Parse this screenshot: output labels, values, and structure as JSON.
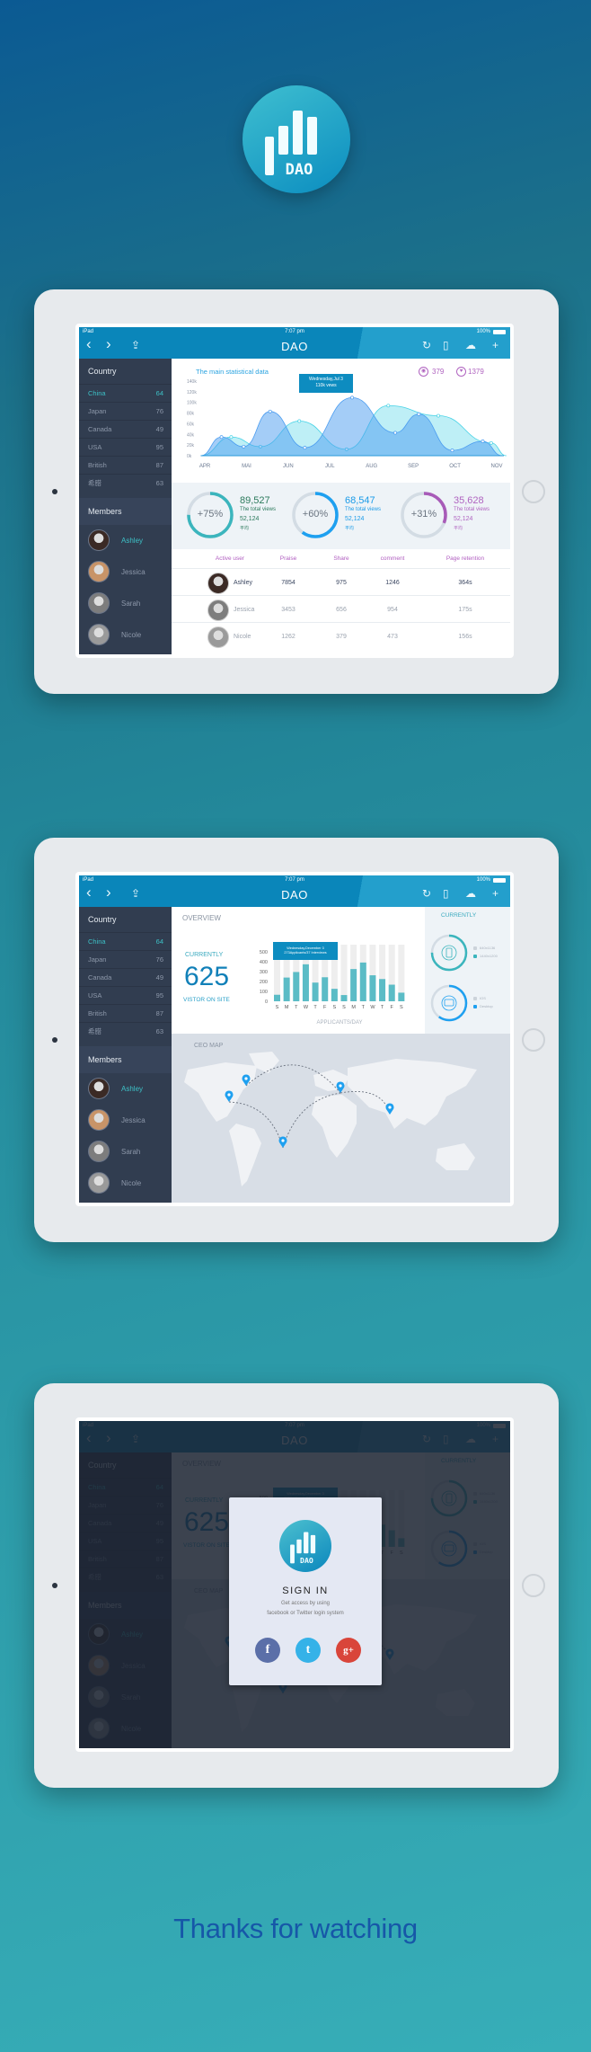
{
  "brand": {
    "logo_text": "DAO",
    "logo_color": "#1aa3c8"
  },
  "statusbar": {
    "device": "iPad",
    "time": "7:07 pm",
    "battery": "100%"
  },
  "nav": {
    "title": "DAO",
    "icons": [
      "chevron-left-icon",
      "chevron-right-icon",
      "share-icon",
      "refresh-icon",
      "book-icon",
      "cloud-icon",
      "plus-icon"
    ]
  },
  "sidebar": {
    "country_title": "Country",
    "countries": [
      {
        "name": "China",
        "count": "64",
        "active": true
      },
      {
        "name": "Japan",
        "count": "76"
      },
      {
        "name": "Canada",
        "count": "49"
      },
      {
        "name": "USA",
        "count": "95"
      },
      {
        "name": "British",
        "count": "87"
      },
      {
        "name": "希腊",
        "count": "63"
      }
    ],
    "members_title": "Members",
    "members": [
      {
        "name": "Ashley",
        "active": true
      },
      {
        "name": "Jessica"
      },
      {
        "name": "Sarah"
      },
      {
        "name": "Nicole"
      }
    ]
  },
  "screen1": {
    "chart_title": "The main statistical data",
    "views_count": "379",
    "likes_count": "1379",
    "tooltip": {
      "line1": "Wednesday,Jul 3",
      "line2": "110k vews"
    },
    "stats": [
      {
        "percent": "+75%",
        "fraction": 0.75,
        "total": "89,527",
        "label": "The total views",
        "avg": "52,124",
        "avg_label": "平均",
        "color": "#3bb5bd",
        "text_color": "#2c7a5c"
      },
      {
        "percent": "+60%",
        "fraction": 0.6,
        "total": "68,547",
        "label": "The total views",
        "avg": "52,124",
        "avg_label": "平均",
        "color": "#1ea0f0",
        "text_color": "#1a9be8"
      },
      {
        "percent": "+31%",
        "fraction": 0.31,
        "total": "35,628",
        "label": "The total views",
        "avg": "52,124",
        "avg_label": "平均",
        "color": "#a85bb8",
        "text_color": "#b064c0"
      }
    ],
    "table": {
      "headers": [
        "Active user",
        "Praise",
        "Share",
        "comment",
        "Page retention"
      ],
      "rows": [
        [
          "Ashley",
          "7854",
          "975",
          "1246",
          "364s"
        ],
        [
          "Jessica",
          "3453",
          "656",
          "954",
          "175s"
        ],
        [
          "Nicole",
          "1262",
          "379",
          "473",
          "156s"
        ]
      ]
    }
  },
  "screen2": {
    "overview_title": "OVERVIEW",
    "currently_label": "CURRENTLY",
    "visitors": "625",
    "visitors_label": "VISTOR ON SITE",
    "tooltip": {
      "line1": "Wednesday,December 3",
      "line2": "273Applicants/37 Interviews"
    },
    "right_title": "CURRENTLY",
    "donuts": [
      {
        "icon": "phone-icon",
        "fraction": 0.75,
        "color": "#3bb5bd",
        "legend": [
          "640x1136",
          "1440x1200"
        ]
      },
      {
        "icon": "monitor-icon",
        "fraction": 0.6,
        "color": "#1ea0f0",
        "legend": [
          "IOS",
          "Desktop"
        ]
      }
    ],
    "map_title": "CEO MAP"
  },
  "signin": {
    "title": "SIGN IN",
    "subtitle_line1": "Get access by using",
    "subtitle_line2": "facebook or Twitter login system",
    "social": [
      {
        "icon": "facebook-icon",
        "glyph": "f",
        "color": "#5b6fa8"
      },
      {
        "icon": "twitter-icon",
        "glyph": "t",
        "color": "#35b2e8"
      },
      {
        "icon": "google-plus-icon",
        "glyph": "g+",
        "color": "#d9453a"
      }
    ]
  },
  "footer": {
    "thanks": "Thanks for watching"
  },
  "chart_data": [
    {
      "type": "area",
      "title": "The main statistical data",
      "x_ticks": [
        "APR",
        "MAI",
        "JUN",
        "JUL",
        "AUG",
        "SEP",
        "OCT",
        "NOV"
      ],
      "y_ticks": [
        "0k",
        "20k",
        "40k",
        "60k",
        "80k",
        "100k",
        "120k",
        "140k"
      ],
      "ylim": [
        0,
        140
      ],
      "series": [
        {
          "color": "#4a9cf0",
          "points": [
            [
              "Mar 28",
              0
            ],
            [
              "Apr 13",
              35
            ],
            [
              "Apr 29",
              17
            ],
            [
              "May 18",
              83
            ],
            [
              "Jun 13",
              15
            ],
            [
              "Jul 17",
              109
            ],
            [
              "Aug 18",
              43
            ],
            [
              "Sep 5",
              78
            ],
            [
              "Sep 29",
              10
            ],
            [
              "Oct 21",
              27
            ],
            [
              "Nov 5",
              0
            ]
          ]
        },
        {
          "color": "#46d2e6",
          "points": [
            [
              "Mar 28",
              0
            ],
            [
              "Apr 20",
              35
            ],
            [
              "May 11",
              17
            ],
            [
              "Jun 9",
              65
            ],
            [
              "Jul 13",
              12
            ],
            [
              "Aug 13",
              94
            ],
            [
              "Sep 19",
              75
            ],
            [
              "Oct 27",
              24
            ],
            [
              "Nov 8",
              0
            ]
          ]
        }
      ]
    },
    {
      "type": "bar",
      "xlabel": "APPLICANTS/DAY",
      "categories": [
        "S",
        "M",
        "T",
        "W",
        "T",
        "F",
        "S",
        "S",
        "M",
        "T",
        "W",
        "T",
        "F",
        "S"
      ],
      "values": [
        66,
        240,
        296,
        374,
        189,
        243,
        126,
        63,
        326,
        392,
        263,
        225,
        168,
        87
      ],
      "y_ticks": [
        "0",
        "100",
        "200",
        "300",
        "400",
        "500"
      ],
      "ylim": [
        0,
        500
      ],
      "color": "#5bbcc6",
      "track_color": "#eeeeee"
    }
  ]
}
